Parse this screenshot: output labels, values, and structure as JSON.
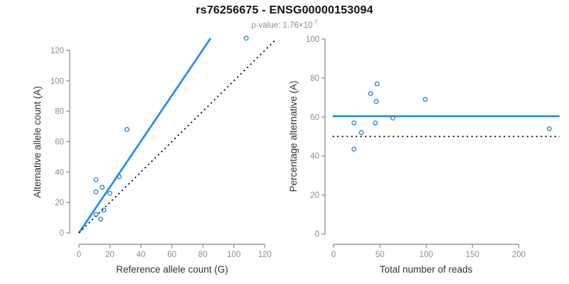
{
  "header": {
    "title": "rs76256675 - ENSG00000153094",
    "subtitle": {
      "label": "p-value: ",
      "base": "1.76×10",
      "exponent": "-7"
    }
  },
  "colors": {
    "accent_blue": "#1E8FF2",
    "point_blue": "#2B7FD4",
    "identity_black": "#000000",
    "axis_gray": "#888888",
    "tick_label_gray": "#8C8C8C",
    "axis_title_dark": "#333333",
    "subtitle_gray": "#8C8C8C",
    "background": "#FFFFFF"
  },
  "chart_data": [
    {
      "id": "allele-count-scatter",
      "type": "scatter",
      "xlabel": "Reference allele count (G)",
      "ylabel": "Alternative allele count (A)",
      "x_ticks": [
        0,
        20,
        40,
        60,
        80,
        100,
        120
      ],
      "y_ticks": [
        0,
        20,
        40,
        60,
        80,
        100,
        120
      ],
      "xlim": [
        0,
        124
      ],
      "ylim": [
        0,
        130
      ],
      "grid": false,
      "points": [
        [
          11,
          35
        ],
        [
          11,
          27
        ],
        [
          15,
          30
        ],
        [
          20,
          26
        ],
        [
          26,
          37
        ],
        [
          16,
          15
        ],
        [
          11,
          12
        ],
        [
          14,
          9
        ],
        [
          31,
          68
        ],
        [
          108,
          128
        ]
      ],
      "lines": [
        {
          "name": "fitted-ratio-line",
          "style": "solid",
          "color_key": "accent_blue",
          "from": [
            0,
            0
          ],
          "to": [
            85,
            128
          ]
        },
        {
          "name": "identity-line",
          "style": "dotted",
          "color_key": "identity_black",
          "from": [
            0,
            0
          ],
          "to": [
            127,
            127
          ]
        }
      ]
    },
    {
      "id": "percentage-vs-reads-scatter",
      "type": "scatter",
      "xlabel": "Total number of reads",
      "ylabel": "Percentage alternative (A)",
      "x_ticks": [
        0,
        50,
        100,
        150,
        200
      ],
      "y_ticks": [
        0,
        20,
        40,
        60,
        80,
        100
      ],
      "xlim": [
        0,
        244
      ],
      "ylim": [
        0,
        100
      ],
      "grid": false,
      "points": [
        [
          47,
          77
        ],
        [
          40,
          72
        ],
        [
          46,
          68
        ],
        [
          45,
          57
        ],
        [
          64,
          59.5
        ],
        [
          30,
          52
        ],
        [
          22,
          57
        ],
        [
          22,
          43.5
        ],
        [
          99,
          69
        ],
        [
          233,
          54
        ]
      ],
      "lines": [
        {
          "name": "fitted-percentage-line",
          "style": "solid",
          "color_key": "accent_blue",
          "from": [
            -1,
            60.4
          ],
          "to": [
            244,
            60.4
          ]
        },
        {
          "name": "null-percentage-line",
          "style": "dotted",
          "color_key": "identity_black",
          "from": [
            -1,
            50
          ],
          "to": [
            244,
            50
          ]
        }
      ]
    }
  ]
}
